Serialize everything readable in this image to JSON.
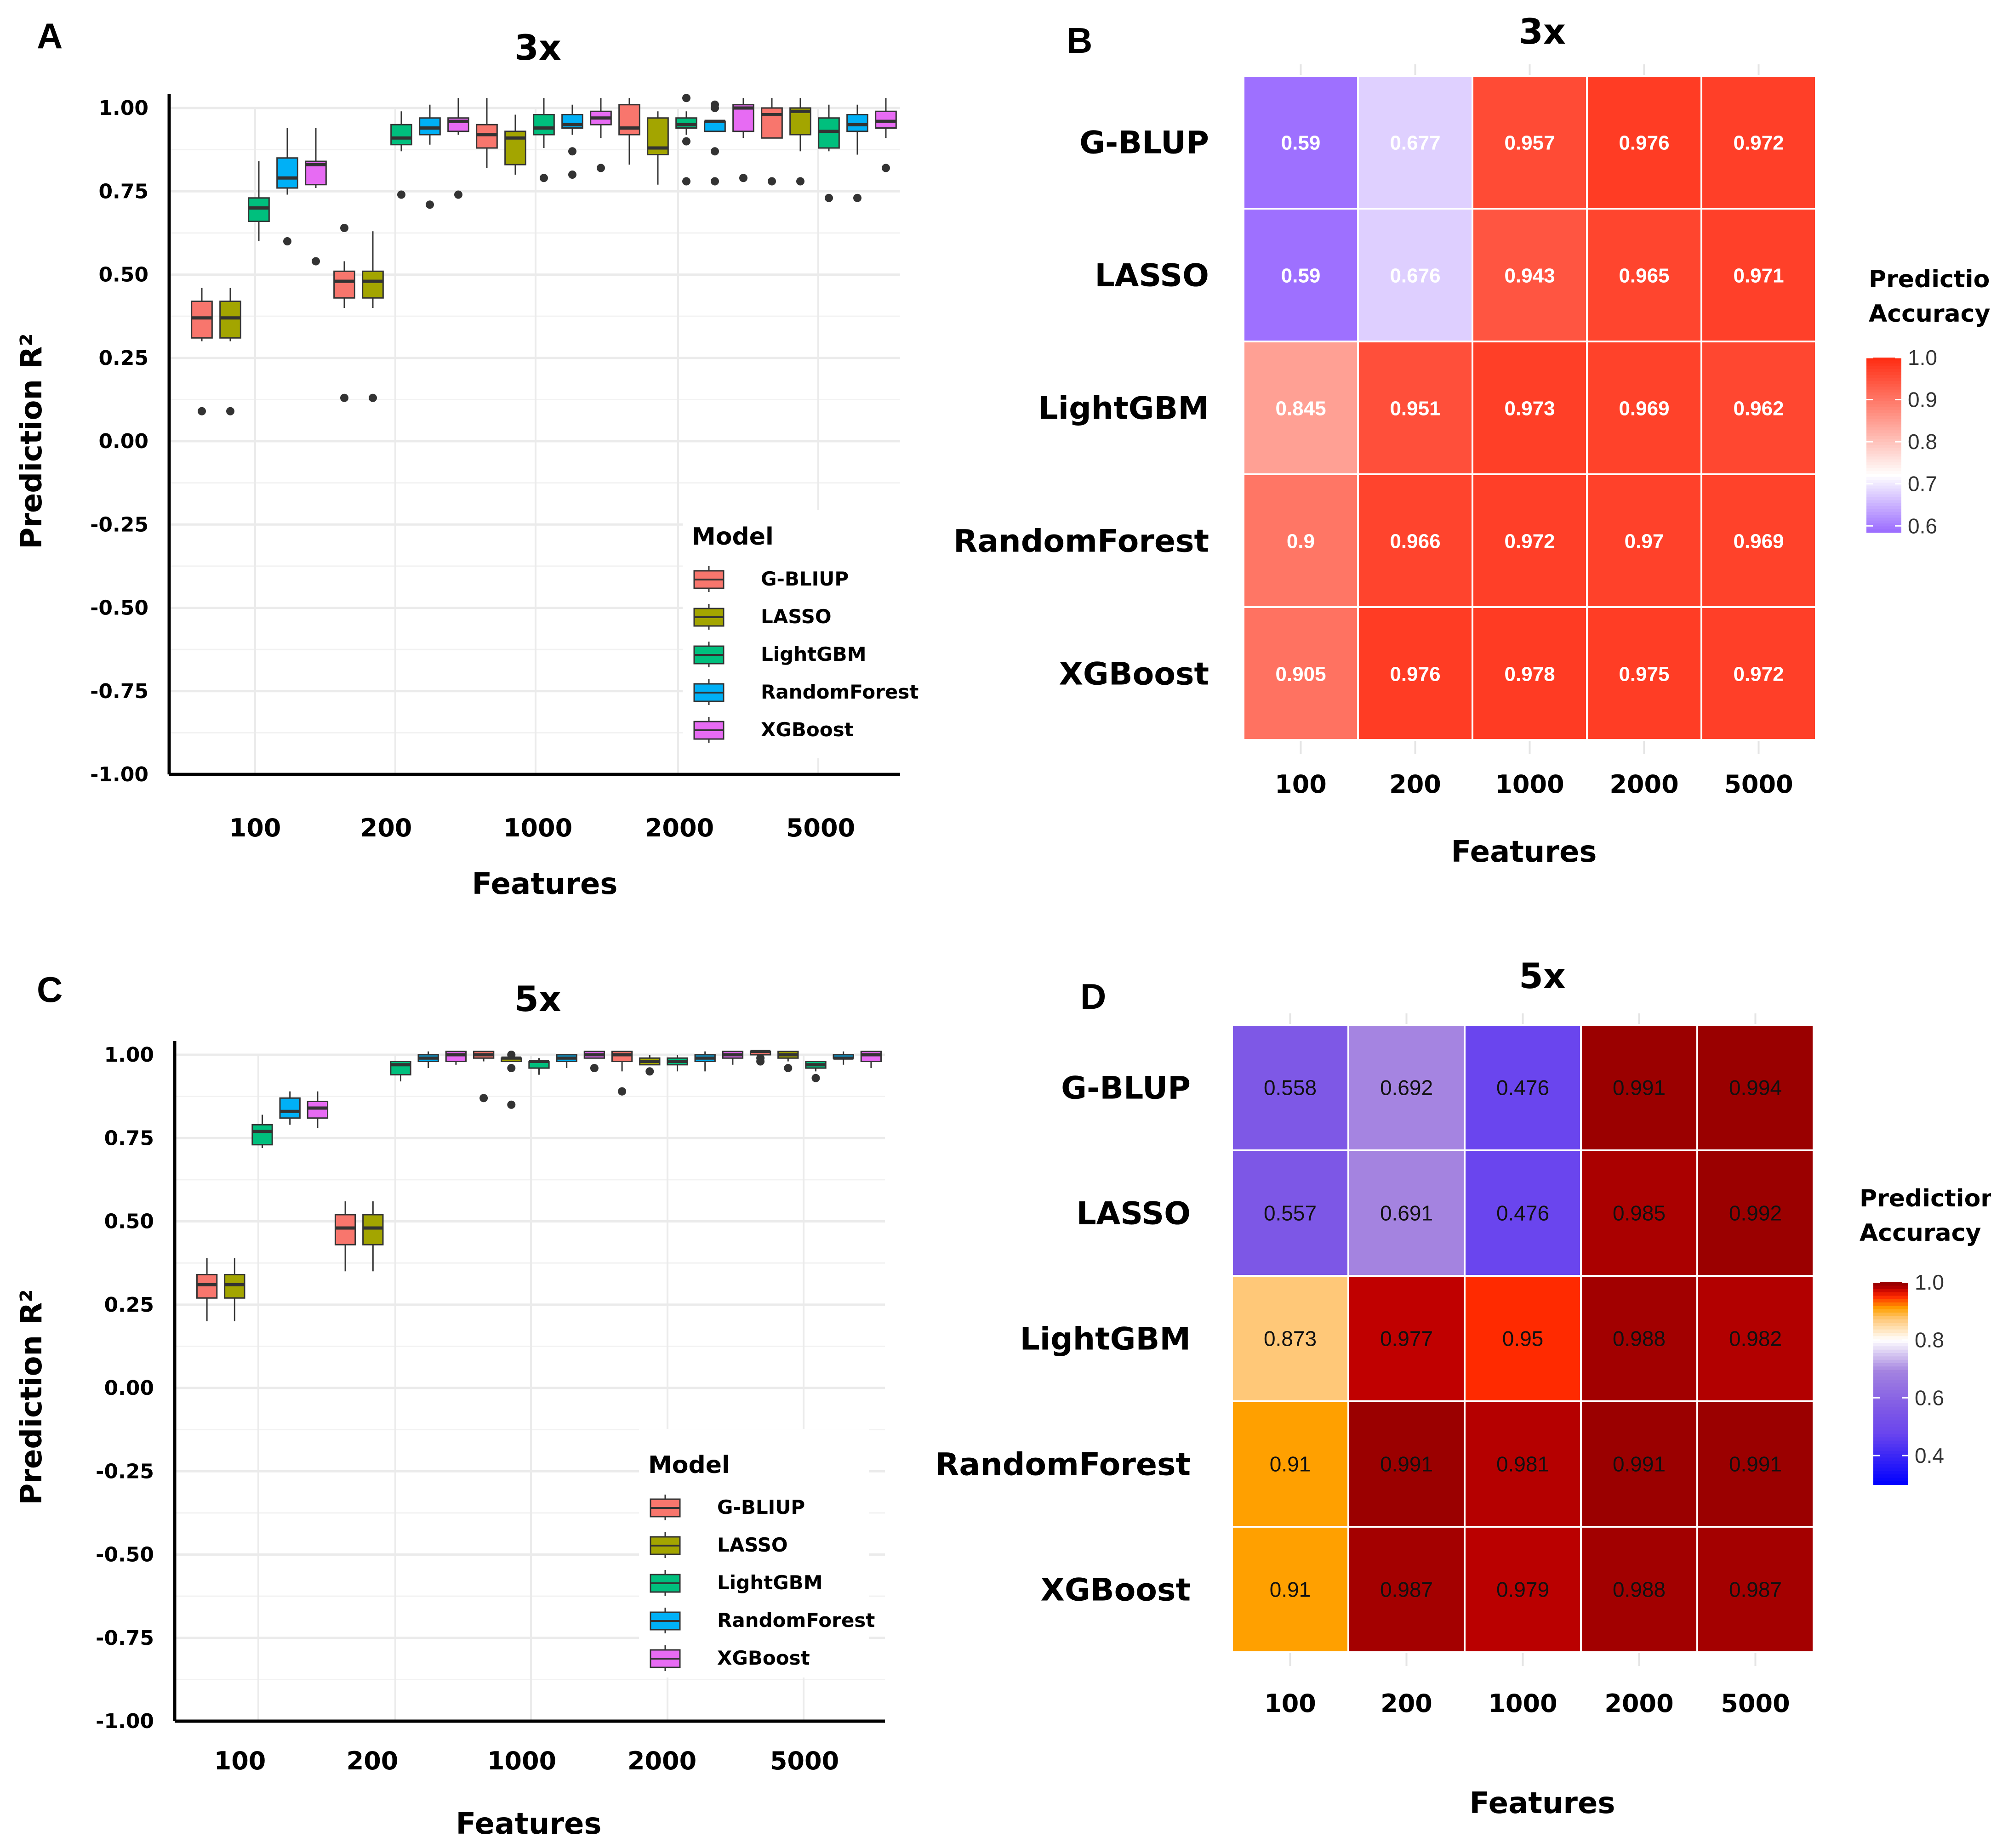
{
  "figure": {
    "panels": [
      "A",
      "B",
      "C",
      "D"
    ]
  },
  "chart_data": [
    {
      "panel": "A",
      "type": "boxplot",
      "title": "3x",
      "xlabel": "Features",
      "ylabel": "Prediction R²",
      "ylim": [
        -1.0,
        1.0
      ],
      "yticks": [
        "1.00",
        "0.75",
        "0.50",
        "0.25",
        "0.00",
        "-0.25",
        "-0.50",
        "-0.75",
        "-1.00"
      ],
      "categories": [
        "100",
        "200",
        "1000",
        "2000",
        "5000"
      ],
      "legend": {
        "title": "Model",
        "position": "bottom-right",
        "entries": [
          "G-BLIUP",
          "LASSO",
          "LightGBM",
          "RandomForest",
          "XGBoost"
        ]
      },
      "series_colors": {
        "G-BLIUP": "#F8766D",
        "LASSO": "#A3A500",
        "LightGBM": "#00BF7D",
        "RandomForest": "#00B0F6",
        "XGBoost": "#E76BF3"
      },
      "grid": true,
      "boxes": [
        {
          "feature": "100",
          "model": "G-BLIUP",
          "min": 0.3,
          "q1": 0.31,
          "median": 0.37,
          "q3": 0.42,
          "max": 0.46,
          "outliers": [
            0.09
          ]
        },
        {
          "feature": "100",
          "model": "LASSO",
          "min": 0.3,
          "q1": 0.31,
          "median": 0.37,
          "q3": 0.42,
          "max": 0.46,
          "outliers": [
            0.09
          ]
        },
        {
          "feature": "100",
          "model": "LightGBM",
          "min": 0.6,
          "q1": 0.66,
          "median": 0.7,
          "q3": 0.73,
          "max": 0.84,
          "outliers": []
        },
        {
          "feature": "100",
          "model": "RandomForest",
          "min": 0.74,
          "q1": 0.76,
          "median": 0.79,
          "q3": 0.85,
          "max": 0.94,
          "outliers": [
            0.6
          ]
        },
        {
          "feature": "100",
          "model": "XGBoost",
          "min": 0.76,
          "q1": 0.77,
          "median": 0.83,
          "q3": 0.84,
          "max": 0.94,
          "outliers": [
            0.54
          ]
        },
        {
          "feature": "200",
          "model": "G-BLIUP",
          "min": 0.4,
          "q1": 0.43,
          "median": 0.48,
          "q3": 0.51,
          "max": 0.54,
          "outliers": [
            0.64,
            0.13
          ]
        },
        {
          "feature": "200",
          "model": "LASSO",
          "min": 0.4,
          "q1": 0.43,
          "median": 0.48,
          "q3": 0.51,
          "max": 0.63,
          "outliers": [
            0.13
          ]
        },
        {
          "feature": "200",
          "model": "LightGBM",
          "min": 0.87,
          "q1": 0.89,
          "median": 0.91,
          "q3": 0.95,
          "max": 0.99,
          "outliers": [
            0.74
          ]
        },
        {
          "feature": "200",
          "model": "RandomForest",
          "min": 0.89,
          "q1": 0.92,
          "median": 0.94,
          "q3": 0.97,
          "max": 1.01,
          "outliers": [
            0.71
          ]
        },
        {
          "feature": "200",
          "model": "XGBoost",
          "min": 0.92,
          "q1": 0.93,
          "median": 0.96,
          "q3": 0.97,
          "max": 1.03,
          "outliers": [
            0.74
          ]
        },
        {
          "feature": "1000",
          "model": "G-BLIUP",
          "min": 0.82,
          "q1": 0.88,
          "median": 0.92,
          "q3": 0.95,
          "max": 1.03,
          "outliers": []
        },
        {
          "feature": "1000",
          "model": "LASSO",
          "min": 0.8,
          "q1": 0.83,
          "median": 0.91,
          "q3": 0.93,
          "max": 0.98,
          "outliers": []
        },
        {
          "feature": "1000",
          "model": "LightGBM",
          "min": 0.88,
          "q1": 0.92,
          "median": 0.94,
          "q3": 0.98,
          "max": 1.03,
          "outliers": [
            0.79
          ]
        },
        {
          "feature": "1000",
          "model": "RandomForest",
          "min": 0.92,
          "q1": 0.94,
          "median": 0.95,
          "q3": 0.98,
          "max": 1.01,
          "outliers": [
            0.87,
            0.8
          ]
        },
        {
          "feature": "1000",
          "model": "XGBoost",
          "min": 0.91,
          "q1": 0.95,
          "median": 0.97,
          "q3": 0.99,
          "max": 1.03,
          "outliers": [
            0.82
          ]
        },
        {
          "feature": "2000",
          "model": "G-BLIUP",
          "min": 0.83,
          "q1": 0.92,
          "median": 0.94,
          "q3": 1.01,
          "max": 1.03,
          "outliers": []
        },
        {
          "feature": "2000",
          "model": "LASSO",
          "min": 0.77,
          "q1": 0.86,
          "median": 0.88,
          "q3": 0.97,
          "max": 0.99,
          "outliers": []
        },
        {
          "feature": "2000",
          "model": "LightGBM",
          "min": 0.92,
          "q1": 0.94,
          "median": 0.95,
          "q3": 0.97,
          "max": 0.99,
          "outliers": [
            1.03,
            0.9,
            0.78
          ]
        },
        {
          "feature": "2000",
          "model": "RandomForest",
          "min": 0.93,
          "q1": 0.93,
          "median": 0.96,
          "q3": 0.96,
          "max": 0.96,
          "outliers": [
            1.01,
            1.0,
            0.87,
            0.78
          ]
        },
        {
          "feature": "2000",
          "model": "XGBoost",
          "min": 0.91,
          "q1": 0.93,
          "median": 1.0,
          "q3": 1.01,
          "max": 1.03,
          "outliers": [
            0.79
          ]
        },
        {
          "feature": "5000",
          "model": "G-BLIUP",
          "min": 0.91,
          "q1": 0.91,
          "median": 0.98,
          "q3": 1.0,
          "max": 1.03,
          "outliers": [
            0.78
          ]
        },
        {
          "feature": "5000",
          "model": "LASSO",
          "min": 0.87,
          "q1": 0.92,
          "median": 0.99,
          "q3": 1.0,
          "max": 1.03,
          "outliers": [
            0.78
          ]
        },
        {
          "feature": "5000",
          "model": "LightGBM",
          "min": 0.87,
          "q1": 0.88,
          "median": 0.93,
          "q3": 0.97,
          "max": 1.01,
          "outliers": [
            0.73
          ]
        },
        {
          "feature": "5000",
          "model": "RandomForest",
          "min": 0.86,
          "q1": 0.93,
          "median": 0.95,
          "q3": 0.98,
          "max": 1.01,
          "outliers": [
            0.73
          ]
        },
        {
          "feature": "5000",
          "model": "XGBoost",
          "min": 0.91,
          "q1": 0.94,
          "median": 0.96,
          "q3": 0.99,
          "max": 1.03,
          "outliers": [
            0.82
          ]
        }
      ]
    },
    {
      "panel": "B",
      "type": "heatmap",
      "title": "3x",
      "xlabel": "Features",
      "ylabel": "",
      "x": [
        "100",
        "200",
        "1000",
        "2000",
        "5000"
      ],
      "y": [
        "G-BLUP",
        "LASSO",
        "LightGBM",
        "RandomForest",
        "XGBoost"
      ],
      "values": [
        [
          0.59,
          0.677,
          0.957,
          0.976,
          0.972
        ],
        [
          0.59,
          0.676,
          0.943,
          0.965,
          0.971
        ],
        [
          0.845,
          0.951,
          0.973,
          0.969,
          0.962
        ],
        [
          0.9,
          0.966,
          0.972,
          0.97,
          0.969
        ],
        [
          0.905,
          0.976,
          0.978,
          0.975,
          0.972
        ]
      ],
      "labels": [
        [
          "0.59",
          "0.677",
          "0.957",
          "0.976",
          "0.972"
        ],
        [
          "0.59",
          "0.676",
          "0.943",
          "0.965",
          "0.971"
        ],
        [
          "0.845",
          "0.951",
          "0.973",
          "0.969",
          "0.962"
        ],
        [
          "0.9",
          "0.966",
          "0.972",
          "0.97",
          "0.969"
        ],
        [
          "0.905",
          "0.976",
          "0.978",
          "0.975",
          "0.972"
        ]
      ],
      "colorbar": {
        "title_line1": "Prediction",
        "title_line2": "Accuracy",
        "ticks": [
          "1.0",
          "0.9",
          "0.8",
          "0.7",
          "0.6"
        ],
        "tick_values": [
          1.0,
          0.9,
          0.8,
          0.7,
          0.6
        ],
        "range": [
          0.585,
          1.0
        ],
        "stops": [
          {
            "v": 0.585,
            "color": "#9A6BFF"
          },
          {
            "v": 0.72,
            "color": "#FFFFFF"
          },
          {
            "v": 1.0,
            "color": "#FF2A10"
          }
        ]
      }
    },
    {
      "panel": "C",
      "type": "boxplot",
      "title": "5x",
      "xlabel": "Features",
      "ylabel": "Prediction R²",
      "ylim": [
        -1.0,
        1.0
      ],
      "yticks": [
        "1.00",
        "0.75",
        "0.50",
        "0.25",
        "0.00",
        "-0.25",
        "-0.50",
        "-0.75",
        "-1.00"
      ],
      "categories": [
        "100",
        "200",
        "1000",
        "2000",
        "5000"
      ],
      "legend": {
        "title": "Model",
        "position": "bottom-right",
        "entries": [
          "G-BLIUP",
          "LASSO",
          "LightGBM",
          "RandomForest",
          "XGBoost"
        ]
      },
      "series_colors": {
        "G-BLIUP": "#F8766D",
        "LASSO": "#A3A500",
        "LightGBM": "#00BF7D",
        "RandomForest": "#00B0F6",
        "XGBoost": "#E76BF3"
      },
      "grid": true,
      "boxes": [
        {
          "feature": "100",
          "model": "G-BLIUP",
          "min": 0.2,
          "q1": 0.27,
          "median": 0.31,
          "q3": 0.34,
          "max": 0.39,
          "outliers": []
        },
        {
          "feature": "100",
          "model": "LASSO",
          "min": 0.2,
          "q1": 0.27,
          "median": 0.31,
          "q3": 0.34,
          "max": 0.39,
          "outliers": []
        },
        {
          "feature": "100",
          "model": "LightGBM",
          "min": 0.72,
          "q1": 0.73,
          "median": 0.77,
          "q3": 0.79,
          "max": 0.82,
          "outliers": []
        },
        {
          "feature": "100",
          "model": "RandomForest",
          "min": 0.79,
          "q1": 0.81,
          "median": 0.83,
          "q3": 0.87,
          "max": 0.89,
          "outliers": []
        },
        {
          "feature": "100",
          "model": "XGBoost",
          "min": 0.78,
          "q1": 0.81,
          "median": 0.84,
          "q3": 0.86,
          "max": 0.89,
          "outliers": []
        },
        {
          "feature": "200",
          "model": "G-BLIUP",
          "min": 0.35,
          "q1": 0.43,
          "median": 0.48,
          "q3": 0.52,
          "max": 0.56,
          "outliers": []
        },
        {
          "feature": "200",
          "model": "LASSO",
          "min": 0.35,
          "q1": 0.43,
          "median": 0.48,
          "q3": 0.52,
          "max": 0.56,
          "outliers": []
        },
        {
          "feature": "200",
          "model": "LightGBM",
          "min": 0.92,
          "q1": 0.94,
          "median": 0.97,
          "q3": 0.98,
          "max": 0.98,
          "outliers": []
        },
        {
          "feature": "200",
          "model": "RandomForest",
          "min": 0.96,
          "q1": 0.98,
          "median": 0.99,
          "q3": 1.0,
          "max": 1.01,
          "outliers": []
        },
        {
          "feature": "200",
          "model": "XGBoost",
          "min": 0.97,
          "q1": 0.98,
          "median": 1.0,
          "q3": 1.01,
          "max": 1.01,
          "outliers": []
        },
        {
          "feature": "1000",
          "model": "G-BLIUP",
          "min": 0.98,
          "q1": 0.99,
          "median": 1.0,
          "q3": 1.01,
          "max": 1.01,
          "outliers": [
            0.87
          ]
        },
        {
          "feature": "1000",
          "model": "LASSO",
          "min": 0.98,
          "q1": 0.98,
          "median": 0.99,
          "q3": 0.99,
          "max": 1.0,
          "outliers": [
            1.0,
            0.96,
            0.85
          ]
        },
        {
          "feature": "1000",
          "model": "LightGBM",
          "min": 0.94,
          "q1": 0.96,
          "median": 0.98,
          "q3": 0.98,
          "max": 0.99,
          "outliers": []
        },
        {
          "feature": "1000",
          "model": "RandomForest",
          "min": 0.96,
          "q1": 0.98,
          "median": 0.99,
          "q3": 1.0,
          "max": 1.0,
          "outliers": []
        },
        {
          "feature": "1000",
          "model": "XGBoost",
          "min": 0.99,
          "q1": 0.99,
          "median": 1.0,
          "q3": 1.01,
          "max": 1.01,
          "outliers": [
            0.96
          ]
        },
        {
          "feature": "2000",
          "model": "G-BLIUP",
          "min": 0.95,
          "q1": 0.98,
          "median": 1.0,
          "q3": 1.01,
          "max": 1.01,
          "outliers": [
            0.89
          ]
        },
        {
          "feature": "2000",
          "model": "LASSO",
          "min": 0.97,
          "q1": 0.97,
          "median": 0.98,
          "q3": 0.99,
          "max": 1.0,
          "outliers": [
            0.95
          ]
        },
        {
          "feature": "2000",
          "model": "LightGBM",
          "min": 0.95,
          "q1": 0.97,
          "median": 0.98,
          "q3": 0.99,
          "max": 1.0,
          "outliers": []
        },
        {
          "feature": "2000",
          "model": "RandomForest",
          "min": 0.95,
          "q1": 0.98,
          "median": 0.99,
          "q3": 1.0,
          "max": 1.01,
          "outliers": []
        },
        {
          "feature": "2000",
          "model": "XGBoost",
          "min": 0.97,
          "q1": 0.99,
          "median": 1.0,
          "q3": 1.01,
          "max": 1.01,
          "outliers": []
        },
        {
          "feature": "5000",
          "model": "G-BLIUP",
          "min": 0.98,
          "q1": 1.0,
          "median": 1.01,
          "q3": 1.01,
          "max": 1.01,
          "outliers": [
            0.98,
            0.99
          ]
        },
        {
          "feature": "5000",
          "model": "LASSO",
          "min": 0.98,
          "q1": 0.99,
          "median": 1.0,
          "q3": 1.01,
          "max": 1.01,
          "outliers": [
            0.96
          ]
        },
        {
          "feature": "5000",
          "model": "LightGBM",
          "min": 0.95,
          "q1": 0.96,
          "median": 0.97,
          "q3": 0.98,
          "max": 0.98,
          "outliers": [
            0.93
          ]
        },
        {
          "feature": "5000",
          "model": "RandomForest",
          "min": 0.97,
          "q1": 0.99,
          "median": 0.99,
          "q3": 1.0,
          "max": 1.01,
          "outliers": []
        },
        {
          "feature": "5000",
          "model": "XGBoost",
          "min": 0.96,
          "q1": 0.98,
          "median": 1.0,
          "q3": 1.01,
          "max": 1.01,
          "outliers": []
        }
      ]
    },
    {
      "panel": "D",
      "type": "heatmap",
      "title": "5x",
      "xlabel": "Features",
      "ylabel": "",
      "x": [
        "100",
        "200",
        "1000",
        "2000",
        "5000"
      ],
      "y": [
        "G-BLUP",
        "LASSO",
        "LightGBM",
        "RandomForest",
        "XGBoost"
      ],
      "values": [
        [
          0.558,
          0.692,
          0.476,
          0.991,
          0.994
        ],
        [
          0.557,
          0.691,
          0.476,
          0.985,
          0.992
        ],
        [
          0.873,
          0.977,
          0.95,
          0.988,
          0.982
        ],
        [
          0.91,
          0.991,
          0.981,
          0.991,
          0.991
        ],
        [
          0.91,
          0.987,
          0.979,
          0.988,
          0.987
        ]
      ],
      "labels": [
        [
          "0.558",
          "0.692",
          "0.476",
          "0.991",
          "0.994"
        ],
        [
          "0.557",
          "0.691",
          "0.476",
          "0.985",
          "0.992"
        ],
        [
          "0.873",
          "0.977",
          "0.95",
          "0.988",
          "0.982"
        ],
        [
          "0.91",
          "0.991",
          "0.981",
          "0.991",
          "0.991"
        ],
        [
          "0.91",
          "0.987",
          "0.979",
          "0.988",
          "0.987"
        ]
      ],
      "colorbar": {
        "title_line1": "Prediction",
        "title_line2": "Accuracy",
        "ticks": [
          "1.0",
          "0.8",
          "0.6",
          "0.4"
        ],
        "tick_values": [
          1.0,
          0.8,
          0.6,
          0.4
        ],
        "range": [
          0.3,
          1.0
        ],
        "stops": [
          {
            "v": 0.3,
            "color": "#0000FF"
          },
          {
            "v": 0.476,
            "color": "#6A45EE"
          },
          {
            "v": 0.56,
            "color": "#7E58E6"
          },
          {
            "v": 0.69,
            "color": "#A382E0"
          },
          {
            "v": 0.8,
            "color": "#FFFFFF"
          },
          {
            "v": 0.873,
            "color": "#FFC878"
          },
          {
            "v": 0.91,
            "color": "#FFA000"
          },
          {
            "v": 0.95,
            "color": "#FF2A00"
          },
          {
            "v": 0.977,
            "color": "#C00000"
          },
          {
            "v": 0.99,
            "color": "#9C0000"
          },
          {
            "v": 1.0,
            "color": "#960000"
          }
        ]
      }
    }
  ]
}
